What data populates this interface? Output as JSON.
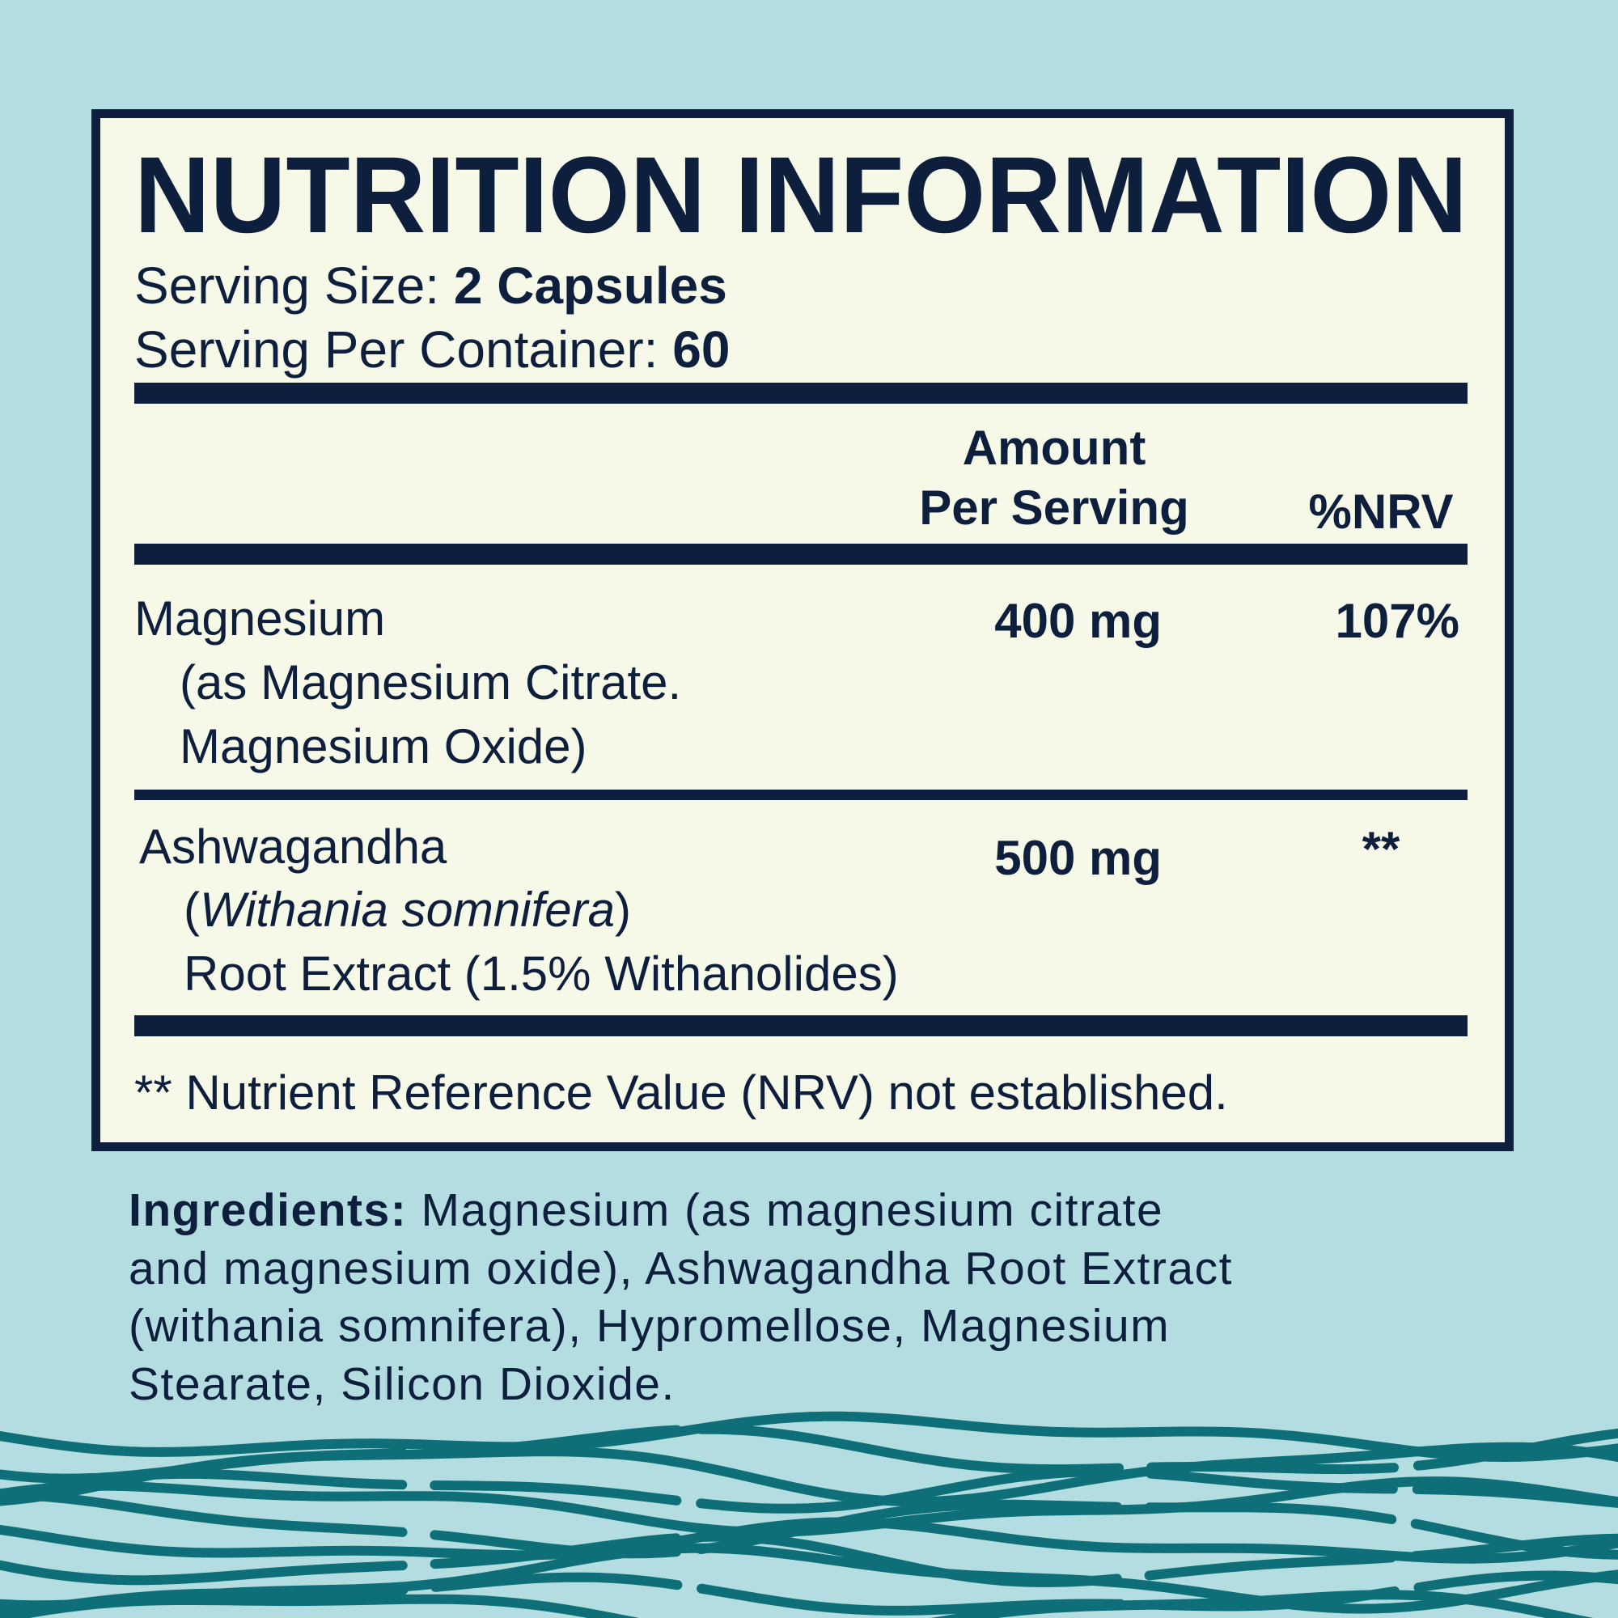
{
  "colors": {
    "background": "#b3dde0",
    "panel": "#f6f8e8",
    "ink": "#0d1f3c",
    "wave": "#0f6f78"
  },
  "label": {
    "title": "NUTRITION INFORMATION",
    "serving_size_label": "Serving Size:",
    "serving_size_value": "2 Capsules",
    "servings_per_container_label": "Serving Per Container:",
    "servings_per_container_value": "60",
    "header": {
      "amount_line1": "Amount",
      "amount_line2": "Per Serving",
      "nrv": "%NRV"
    },
    "rows": [
      {
        "name": "Magnesium",
        "detail1": "(as Magnesium Citrate.",
        "detail2": "Magnesium Oxide)",
        "amount": "400 mg",
        "nrv": "107%"
      },
      {
        "name": "Ashwagandha",
        "detail1_open": "(",
        "detail1_italic": "Withania somnifera",
        "detail1_close": ")",
        "detail2": "Root Extract (1.5% Withanolides)",
        "amount": "500 mg",
        "nrv": "**"
      }
    ],
    "footnote": "** Nutrient Reference Value (NRV) not established."
  },
  "ingredients": {
    "label": "Ingredients:",
    "lines": [
      " Magnesium (as magnesium citrate",
      "and magnesium oxide), Ashwagandha Root Extract",
      "(withania somnifera), Hypromellose, Magnesium",
      "Stearate, Silicon Dioxide."
    ]
  },
  "decoration": {
    "icon": "wave-pattern"
  }
}
